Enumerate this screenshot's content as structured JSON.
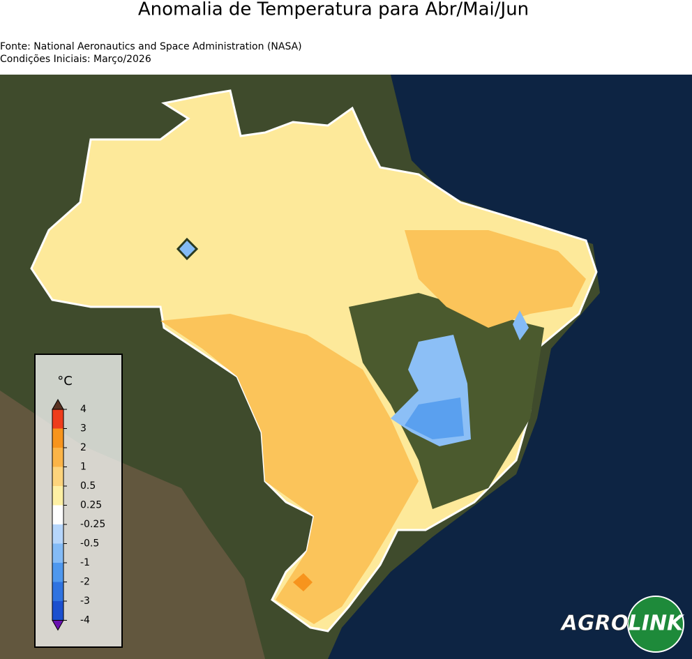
{
  "title": "Anomalia de Temperatura para Abr/Mai/Jun",
  "source": "Fonte: National Aeronautics and Space Administration (NASA)",
  "initial_conditions": "Condições Iniciais: Março/2026",
  "legend": {
    "unit": "°C",
    "ticks": [
      4,
      3,
      2,
      1,
      0.5,
      0.25,
      -0.25,
      -0.5,
      -1,
      -2,
      -3,
      -4
    ],
    "colors": [
      "#ee3d1c",
      "#f7941d",
      "#fbb447",
      "#fdd47c",
      "#fef0a4",
      "#ffffff",
      "#b6d6fb",
      "#84bbf6",
      "#4f98ee",
      "#2f73e0",
      "#1b50cf"
    ],
    "over_color": "#5a3222",
    "under_color": "#6a12b0"
  },
  "logo": {
    "left": "AGRO",
    "right": "LINK"
  }
}
